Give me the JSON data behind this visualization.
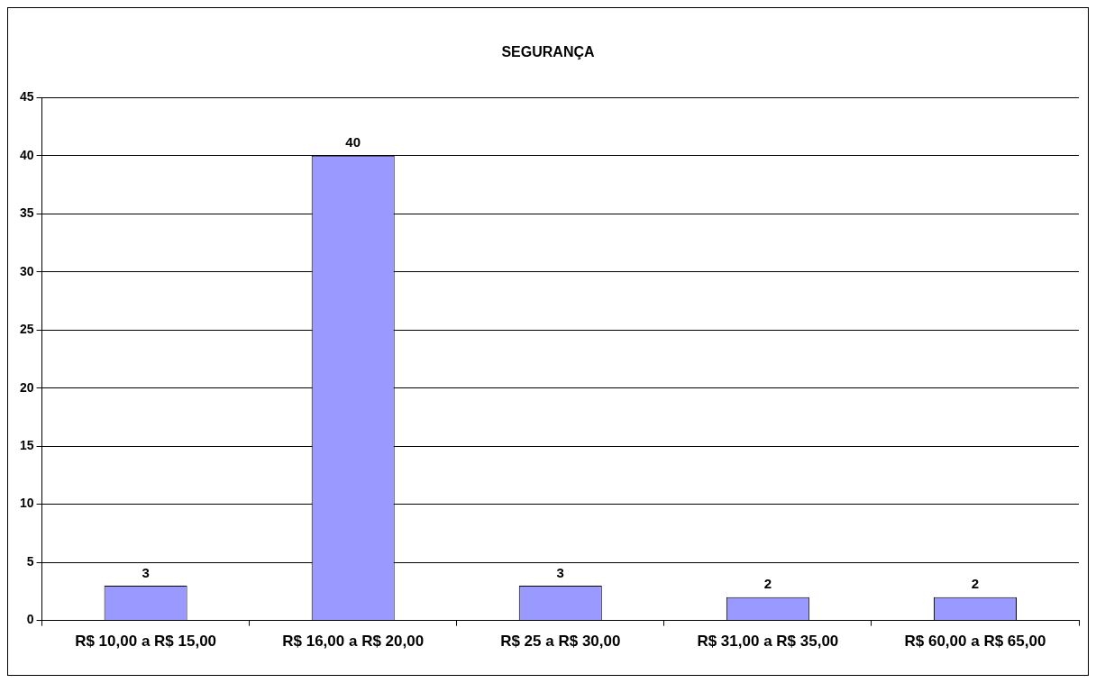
{
  "chart_data": {
    "type": "bar",
    "title": "SEGURANÇA",
    "categories": [
      "R$ 10,00 a R$ 15,00",
      "R$ 16,00 a R$ 20,00",
      "R$ 25 a R$ 30,00",
      "R$ 31,00 a R$ 35,00",
      "R$ 60,00 a R$ 65,00"
    ],
    "values": [
      3,
      40,
      3,
      2,
      2
    ],
    "color": "#9999ff",
    "ylim": [
      0,
      45
    ],
    "yticks": [
      0,
      5,
      10,
      15,
      20,
      25,
      30,
      35,
      40,
      45
    ],
    "grid": "y",
    "legend": false,
    "data_labels": true
  }
}
